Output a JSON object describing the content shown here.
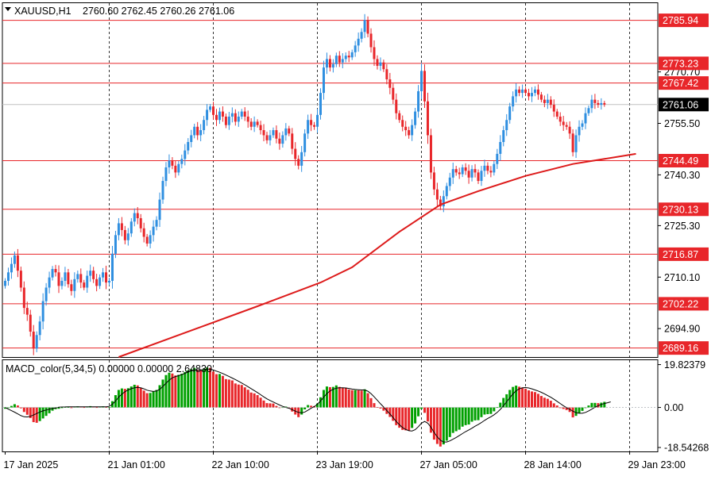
{
  "header": {
    "symbol": "XAUUSD,H1",
    "ohlc": "2760.60 2762.45 2760.26 2761.06"
  },
  "chart_data": [
    {
      "type": "candlestick",
      "panel": "price",
      "y_axis_ticks": [
        "2770.70",
        "2755.50",
        "2740.30",
        "2725.30",
        "2710.10",
        "2694.90"
      ],
      "y_axis_values": [
        2770.7,
        2755.5,
        2740.3,
        2725.3,
        2710.1,
        2694.9
      ],
      "ylim": [
        2686.5,
        2791.0
      ],
      "current_price": {
        "label": "2761.06",
        "value": 2761.06
      },
      "levels": [
        {
          "label": "2785.94",
          "value": 2785.94
        },
        {
          "label": "2773.23",
          "value": 2773.23
        },
        {
          "label": "2767.42",
          "value": 2767.42
        },
        {
          "label": "2744.49",
          "value": 2744.49
        },
        {
          "label": "2730.13",
          "value": 2730.13
        },
        {
          "label": "2716.87",
          "value": 2716.87
        },
        {
          "label": "2702.22",
          "value": 2702.22
        },
        {
          "label": "2689.16",
          "value": 2689.16
        }
      ],
      "colors": {
        "bull": "#2f8fe0",
        "bear": "#e8262a",
        "ma": "#dd1b1b",
        "level": "#e8262a",
        "grid": "#000000"
      },
      "x_axis_labels": [
        "17 Jan 2025",
        "21 Jan 01:00",
        "22 Jan 10:00",
        "23 Jan 19:00",
        "27 Jan 05:00",
        "28 Jan 14:00",
        "29 Jan 23:00"
      ],
      "x_label_bar_index": [
        0,
        33,
        66,
        99,
        132,
        165,
        198
      ],
      "close": [
        2709.0,
        2711.5,
        2714.0,
        2716.5,
        2712.0,
        2707.0,
        2701.0,
        2699.0,
        2694.0,
        2689.0,
        2693.0,
        2697.0,
        2703.0,
        2707.0,
        2710.0,
        2712.5,
        2711.5,
        2707.5,
        2709.0,
        2711.5,
        2708.0,
        2706.0,
        2709.5,
        2711.0,
        2708.5,
        2707.0,
        2710.5,
        2712.0,
        2709.5,
        2707.5,
        2710.0,
        2711.5,
        2708.5,
        2709.0,
        2717.0,
        2722.5,
        2726.0,
        2724.0,
        2721.0,
        2723.0,
        2726.5,
        2729.0,
        2727.5,
        2724.5,
        2722.0,
        2720.0,
        2722.5,
        2725.0,
        2727.0,
        2733.0,
        2738.5,
        2742.5,
        2744.5,
        2743.0,
        2741.0,
        2743.5,
        2745.0,
        2747.5,
        2750.0,
        2752.0,
        2754.5,
        2752.0,
        2753.5,
        2756.5,
        2759.5,
        2760.5,
        2758.0,
        2756.5,
        2759.0,
        2757.5,
        2755.0,
        2757.5,
        2758.5,
        2756.0,
        2757.5,
        2759.0,
        2757.5,
        2756.0,
        2754.5,
        2756.0,
        2755.0,
        2753.5,
        2752.0,
        2750.5,
        2752.0,
        2753.5,
        2751.0,
        2749.5,
        2752.0,
        2754.0,
        2752.5,
        2748.0,
        2745.0,
        2743.0,
        2747.0,
        2752.5,
        2756.5,
        2755.0,
        2754.5,
        2758.0,
        2764.5,
        2772.0,
        2774.5,
        2772.0,
        2773.0,
        2775.5,
        2773.5,
        2774.5,
        2775.5,
        2775.0,
        2776.5,
        2778.5,
        2780.5,
        2782.5,
        2786.0,
        2782.0,
        2778.0,
        2774.5,
        2772.5,
        2773.5,
        2771.5,
        2768.5,
        2766.0,
        2762.5,
        2758.5,
        2756.5,
        2754.5,
        2753.5,
        2752.0,
        2755.0,
        2759.0,
        2765.0,
        2771.0,
        2762.0,
        2752.0,
        2741.0,
        2736.0,
        2733.0,
        2731.0,
        2734.0,
        2737.0,
        2739.5,
        2742.0,
        2741.0,
        2740.5,
        2742.5,
        2741.5,
        2739.5,
        2742.0,
        2741.0,
        2738.5,
        2741.5,
        2743.0,
        2741.5,
        2741.0,
        2743.5,
        2746.5,
        2750.0,
        2753.5,
        2756.5,
        2760.5,
        2763.5,
        2765.5,
        2764.5,
        2765.5,
        2764.5,
        2763.5,
        2764.5,
        2765.5,
        2764.0,
        2762.5,
        2761.5,
        2762.5,
        2761.0,
        2759.0,
        2757.5,
        2756.0,
        2755.0,
        2754.5,
        2752.5,
        2747.0,
        2752.0,
        2754.5,
        2755.5,
        2758.5,
        2760.0,
        2762.5,
        2761.5,
        2761.0,
        2761.5,
        2761.06
      ],
      "ma_start": [
        0,
        2688.0
      ],
      "ma_points": [
        [
          36,
          2686.5
        ],
        [
          55,
          2693.0
        ],
        [
          80,
          2701.5
        ],
        [
          100,
          2708.5
        ],
        [
          110,
          2713.0
        ],
        [
          125,
          2723.5
        ],
        [
          138,
          2731.5
        ],
        [
          150,
          2735.5
        ],
        [
          165,
          2740.0
        ],
        [
          180,
          2743.5
        ],
        [
          200,
          2746.5
        ]
      ]
    },
    {
      "type": "histogram",
      "panel": "macd",
      "title": "MACD_color(5,34,5) 0.00000 0.00000 2.64830",
      "y_axis_ticks": [
        "19.82379",
        "0.00",
        "-18.54268"
      ],
      "y_axis_values": [
        19.82379,
        0.0,
        -18.54268
      ],
      "ylim": [
        -20.0,
        21.5
      ],
      "colors": {
        "up": "#00a000",
        "down": "#e8262a",
        "signal": "#000000"
      },
      "values": [
        -0.6,
        0.0,
        0.7,
        1.5,
        0.9,
        -0.4,
        -2.1,
        -3.4,
        -4.9,
        -6.8,
        -7.1,
        -6.3,
        -5.1,
        -3.9,
        -2.7,
        -1.5,
        -0.8,
        -0.6,
        -0.2,
        0.2,
        0.2,
        0.0,
        0.3,
        0.5,
        0.3,
        0.1,
        0.4,
        0.6,
        0.3,
        0.1,
        0.3,
        0.5,
        0.2,
        0.2,
        2.9,
        5.7,
        8.1,
        8.8,
        8.6,
        8.9,
        9.7,
        10.5,
        10.2,
        9.0,
        7.8,
        6.6,
        6.7,
        7.4,
        8.1,
        10.3,
        12.9,
        15.0,
        16.1,
        15.7,
        14.8,
        15.1,
        15.6,
        16.4,
        17.2,
        17.7,
        18.3,
        17.3,
        17.2,
        17.8,
        18.5,
        18.3,
        16.6,
        15.4,
        15.5,
        14.6,
        13.1,
        12.9,
        12.5,
        11.1,
        10.6,
        10.4,
        9.3,
        8.2,
        6.9,
        6.5,
        5.7,
        4.5,
        3.2,
        2.0,
        1.9,
        1.8,
        0.7,
        -0.2,
        0.1,
        0.4,
        -0.2,
        -1.9,
        -3.3,
        -4.5,
        -3.3,
        -0.9,
        1.1,
        0.8,
        0.6,
        1.8,
        4.7,
        8.1,
        9.7,
        9.4,
        9.5,
        10.2,
        9.5,
        9.2,
        9.1,
        8.3,
        8.0,
        8.0,
        7.9,
        7.8,
        8.4,
        6.6,
        4.3,
        2.0,
        0.2,
        -0.5,
        -1.5,
        -3.0,
        -4.4,
        -6.2,
        -8.2,
        -9.4,
        -10.4,
        -10.6,
        -10.8,
        -9.5,
        -7.4,
        -4.1,
        -0.7,
        -2.5,
        -6.5,
        -11.7,
        -14.9,
        -16.9,
        -18.1,
        -17.1,
        -15.4,
        -13.7,
        -11.8,
        -11.0,
        -10.3,
        -8.9,
        -8.2,
        -7.9,
        -6.6,
        -6.0,
        -5.9,
        -4.5,
        -3.3,
        -3.1,
        -3.0,
        -1.8,
        0.1,
        2.2,
        4.4,
        6.1,
        8.1,
        9.5,
        10.1,
        9.6,
        9.2,
        8.6,
        7.9,
        7.4,
        7.1,
        6.3,
        5.3,
        4.5,
        4.0,
        3.1,
        1.9,
        0.9,
        0.0,
        -0.7,
        -1.2,
        -2.1,
        -4.6,
        -3.9,
        -2.7,
        -1.6,
        0.0,
        0.9,
        2.1,
        2.1,
        2.0,
        2.2,
        2.6
      ],
      "signal": [
        0.0,
        -0.8,
        -1.5,
        -2.2,
        -3.0,
        -3.8,
        -4.3,
        -4.4,
        -4.1,
        -3.5,
        -2.8,
        -2.1,
        -1.6,
        -1.2,
        -0.8,
        -0.5,
        -0.2,
        0.1,
        0.2,
        0.25,
        0.3,
        0.3,
        0.3,
        0.3,
        0.3,
        0.3,
        0.3,
        0.3,
        0.3,
        0.3,
        0.3,
        0.3,
        0.3,
        0.5,
        1.5,
        3.0,
        4.8,
        6.2,
        7.3,
        8.1,
        8.7,
        9.1,
        9.3,
        9.1,
        8.6,
        8.0,
        7.6,
        7.4,
        7.6,
        8.4,
        9.7,
        11.2,
        12.6,
        13.7,
        14.3,
        14.7,
        15.2,
        15.8,
        16.4,
        16.9,
        17.3,
        17.4,
        17.4,
        17.5,
        17.7,
        17.7,
        17.3,
        16.8,
        16.3,
        15.7,
        15.0,
        14.3,
        13.6,
        12.9,
        12.1,
        11.3,
        10.5,
        9.6,
        8.7,
        7.8,
        6.9,
        5.9,
        4.9,
        4.0,
        3.2,
        2.5,
        1.8,
        1.1,
        0.5,
        0.0,
        -0.4,
        -1.0,
        -1.7,
        -2.3,
        -2.5,
        -2.1,
        -1.3,
        -0.4,
        0.4,
        1.5,
        3.0,
        4.8,
        6.4,
        7.6,
        8.4,
        8.9,
        9.1,
        9.1,
        9.0,
        8.8,
        8.5,
        8.3,
        8.2,
        8.1,
        8.1,
        7.5,
        6.4,
        4.9,
        3.3,
        1.7,
        0.2,
        -1.4,
        -3.0,
        -4.7,
        -6.5,
        -8.0,
        -9.3,
        -10.2,
        -10.8,
        -10.9,
        -10.3,
        -8.9,
        -7.3,
        -6.5,
        -7.3,
        -9.2,
        -11.5,
        -13.6,
        -15.2,
        -16.0,
        -16.0,
        -15.5,
        -14.7,
        -13.9,
        -13.0,
        -12.1,
        -11.2,
        -10.4,
        -9.6,
        -8.7,
        -7.9,
        -7.0,
        -6.0,
        -5.1,
        -4.3,
        -3.4,
        -2.3,
        -0.9,
        0.8,
        2.6,
        4.5,
        6.3,
        7.7,
        8.6,
        9.1,
        9.2,
        9.0,
        8.6,
        8.1,
        7.6,
        7.0,
        6.3,
        5.5,
        4.7,
        3.8,
        2.8,
        1.8,
        0.8,
        -0.1,
        -0.9,
        -1.7,
        -2.4,
        -2.7,
        -2.7,
        -2.3,
        -1.6,
        -0.8,
        0.1,
        0.8,
        1.4,
        1.8,
        2.2,
        2.6
      ]
    }
  ]
}
